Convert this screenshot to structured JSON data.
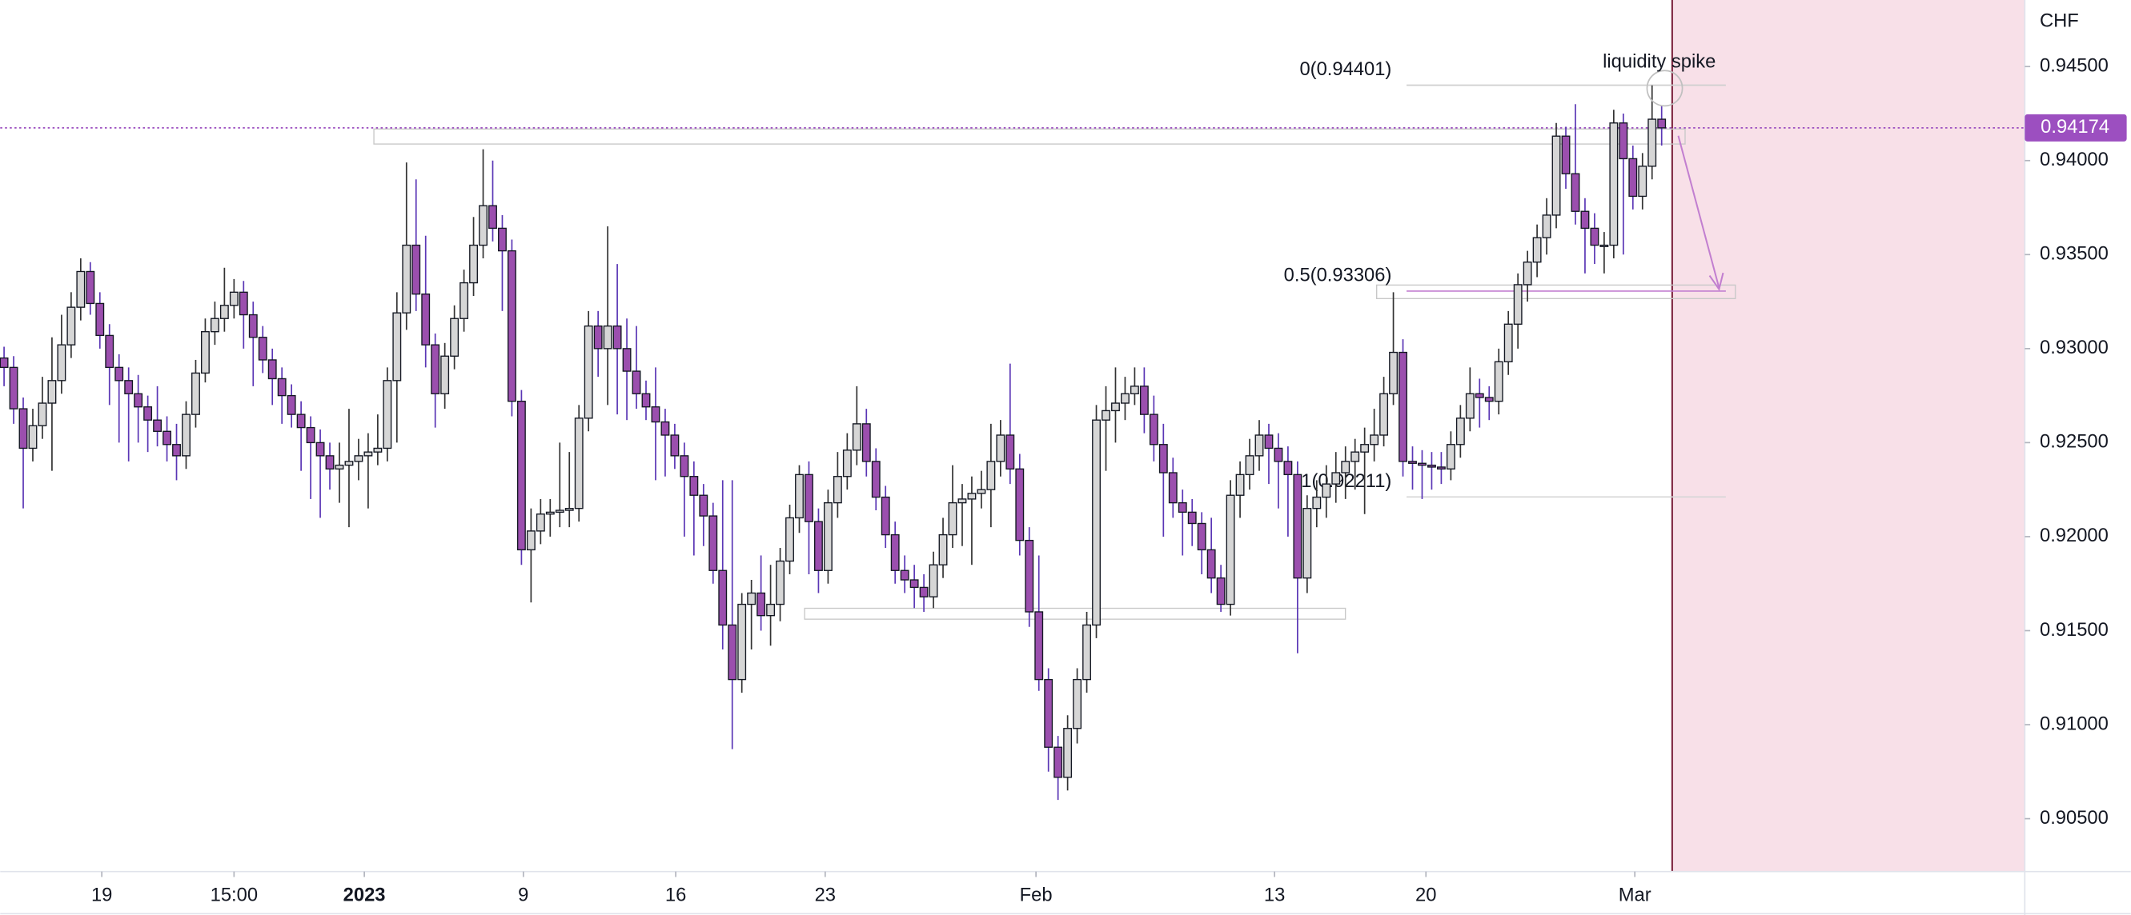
{
  "chart_data": {
    "type": "candlestick",
    "currency": "CHF",
    "annotation": "liquidity spike",
    "up_color": "#d6d6d6",
    "down_color": "#9b4fae",
    "up_wick": "#333333",
    "down_wick": "#5a36b5",
    "outline": "#131722",
    "open": [
      0.9295,
      0.929,
      0.9268,
      0.9247,
      0.9259,
      0.9271,
      0.9283,
      0.9302,
      0.9322,
      0.9341,
      0.9324,
      0.9307,
      0.929,
      0.9283,
      0.9276,
      0.9269,
      0.9262,
      0.9256,
      0.9249,
      0.9243,
      0.9265,
      0.9287,
      0.9309,
      0.9316,
      0.9323,
      0.933,
      0.9318,
      0.9306,
      0.9294,
      0.9284,
      0.9275,
      0.9265,
      0.9258,
      0.925,
      0.9243,
      0.9236,
      0.9238,
      0.924,
      0.9243,
      0.9245,
      0.9247,
      0.9283,
      0.9319,
      0.9355,
      0.9329,
      0.9302,
      0.9276,
      0.9296,
      0.9316,
      0.9335,
      0.9355,
      0.9376,
      0.9364,
      0.9352,
      0.9272,
      0.9193,
      0.9203,
      0.9212,
      0.9213,
      0.9214,
      0.9215,
      0.9263,
      0.9312,
      0.93,
      0.9312,
      0.93,
      0.9288,
      0.9276,
      0.9269,
      0.9261,
      0.9254,
      0.9243,
      0.9232,
      0.9222,
      0.9211,
      0.9182,
      0.9153,
      0.9124,
      0.9164,
      0.917,
      0.9158,
      0.9164,
      0.9187,
      0.921,
      0.9233,
      0.9208,
      0.9182,
      0.9218,
      0.9232,
      0.9246,
      0.926,
      0.924,
      0.9221,
      0.9201,
      0.9182,
      0.9177,
      0.9173,
      0.9168,
      0.9185,
      0.9201,
      0.9218,
      0.922,
      0.9223,
      0.9225,
      0.924,
      0.9254,
      0.9236,
      0.9198,
      0.916,
      0.9124,
      0.9088,
      0.9072,
      0.9098,
      0.9124,
      0.9153,
      0.9262,
      0.9267,
      0.9271,
      0.9276,
      0.928,
      0.9265,
      0.9249,
      0.9234,
      0.9218,
      0.9213,
      0.9207,
      0.9193,
      0.9178,
      0.9164,
      0.9222,
      0.9233,
      0.9243,
      0.9254,
      0.9247,
      0.924,
      0.9233,
      0.9178,
      0.9215,
      0.9221,
      0.9228,
      0.9234,
      0.924,
      0.9245,
      0.9249,
      0.9254,
      0.9276,
      0.9298,
      0.924,
      0.9239,
      0.9238,
      0.9237,
      0.9236,
      0.9249,
      0.9263,
      0.9276,
      0.9274,
      0.9272,
      0.9293,
      0.9313,
      0.9334,
      0.9346,
      0.9359,
      0.9371,
      0.9413,
      0.9393,
      0.9373,
      0.9364,
      0.9355,
      0.9355,
      0.942,
      0.9401,
      0.9381,
      0.9397,
      0.9422
    ],
    "high": [
      0.9301,
      0.9296,
      0.9274,
      0.9268,
      0.9285,
      0.9306,
      0.9318,
      0.933,
      0.9348,
      0.9346,
      0.933,
      0.9313,
      0.9297,
      0.929,
      0.9286,
      0.9275,
      0.928,
      0.9264,
      0.926,
      0.9272,
      0.9294,
      0.9316,
      0.9325,
      0.9343,
      0.9337,
      0.9336,
      0.9325,
      0.9312,
      0.93,
      0.929,
      0.9281,
      0.9272,
      0.9264,
      0.9257,
      0.925,
      0.925,
      0.9268,
      0.9252,
      0.9255,
      0.9265,
      0.929,
      0.933,
      0.9399,
      0.939,
      0.936,
      0.9308,
      0.9303,
      0.9323,
      0.9342,
      0.937,
      0.9406,
      0.94,
      0.9371,
      0.9358,
      0.9278,
      0.9215,
      0.922,
      0.922,
      0.925,
      0.9245,
      0.927,
      0.932,
      0.932,
      0.9365,
      0.9345,
      0.9316,
      0.9312,
      0.9283,
      0.929,
      0.9268,
      0.926,
      0.925,
      0.924,
      0.9228,
      0.9218,
      0.923,
      0.923,
      0.917,
      0.9177,
      0.919,
      0.9185,
      0.9194,
      0.9217,
      0.9238,
      0.924,
      0.9215,
      0.9225,
      0.9245,
      0.9255,
      0.928,
      0.9268,
      0.9247,
      0.9227,
      0.9208,
      0.919,
      0.9185,
      0.918,
      0.9192,
      0.921,
      0.9238,
      0.9228,
      0.9232,
      0.9235,
      0.926,
      0.9262,
      0.9292,
      0.9244,
      0.9205,
      0.919,
      0.913,
      0.9094,
      0.9105,
      0.913,
      0.916,
      0.927,
      0.928,
      0.929,
      0.9285,
      0.929,
      0.929,
      0.9275,
      0.926,
      0.9242,
      0.9225,
      0.922,
      0.9213,
      0.921,
      0.9185,
      0.923,
      0.924,
      0.9252,
      0.9262,
      0.926,
      0.9255,
      0.9248,
      0.924,
      0.9222,
      0.923,
      0.9238,
      0.9245,
      0.9248,
      0.9252,
      0.9258,
      0.9268,
      0.9285,
      0.933,
      0.9305,
      0.9248,
      0.9246,
      0.9245,
      0.9245,
      0.9256,
      0.927,
      0.929,
      0.9284,
      0.928,
      0.93,
      0.932,
      0.934,
      0.9352,
      0.9366,
      0.938,
      0.942,
      0.9418,
      0.943,
      0.938,
      0.9372,
      0.9362,
      0.9427,
      0.9425,
      0.9408,
      0.9404,
      0.944,
      0.9429
    ],
    "low": [
      0.928,
      0.926,
      0.9215,
      0.924,
      0.9252,
      0.9235,
      0.9276,
      0.9295,
      0.9315,
      0.9318,
      0.93,
      0.927,
      0.925,
      0.924,
      0.925,
      0.9245,
      0.9248,
      0.924,
      0.923,
      0.9236,
      0.9258,
      0.9282,
      0.9302,
      0.9309,
      0.9316,
      0.93,
      0.928,
      0.9287,
      0.927,
      0.926,
      0.9258,
      0.9235,
      0.922,
      0.921,
      0.9225,
      0.9218,
      0.9205,
      0.923,
      0.9215,
      0.9238,
      0.924,
      0.925,
      0.931,
      0.932,
      0.929,
      0.9258,
      0.9268,
      0.9289,
      0.9309,
      0.9328,
      0.9348,
      0.9357,
      0.932,
      0.9264,
      0.9185,
      0.9165,
      0.9196,
      0.92,
      0.9205,
      0.9205,
      0.9208,
      0.9256,
      0.9285,
      0.927,
      0.9265,
      0.9262,
      0.9268,
      0.9262,
      0.923,
      0.9232,
      0.9236,
      0.92,
      0.919,
      0.9195,
      0.9175,
      0.914,
      0.9087,
      0.9117,
      0.914,
      0.915,
      0.9142,
      0.9155,
      0.918,
      0.9202,
      0.918,
      0.917,
      0.9175,
      0.921,
      0.9225,
      0.9238,
      0.9232,
      0.9214,
      0.9194,
      0.9175,
      0.917,
      0.9162,
      0.916,
      0.9162,
      0.9178,
      0.9194,
      0.9195,
      0.9185,
      0.9215,
      0.9205,
      0.9232,
      0.9228,
      0.919,
      0.9152,
      0.9118,
      0.9075,
      0.906,
      0.9065,
      0.909,
      0.9117,
      0.9146,
      0.9235,
      0.925,
      0.9262,
      0.927,
      0.9255,
      0.924,
      0.92,
      0.921,
      0.919,
      0.9195,
      0.918,
      0.917,
      0.916,
      0.9158,
      0.921,
      0.9225,
      0.9235,
      0.9228,
      0.9215,
      0.92,
      0.9138,
      0.917,
      0.9205,
      0.921,
      0.9218,
      0.922,
      0.9225,
      0.9212,
      0.924,
      0.9248,
      0.927,
      0.9232,
      0.9225,
      0.922,
      0.9225,
      0.9228,
      0.923,
      0.9242,
      0.9256,
      0.9258,
      0.9262,
      0.9265,
      0.9286,
      0.93,
      0.9325,
      0.9338,
      0.935,
      0.9364,
      0.9385,
      0.9366,
      0.934,
      0.9345,
      0.934,
      0.9348,
      0.935,
      0.9374,
      0.9374,
      0.939,
      0.9408
    ],
    "close": [
      0.929,
      0.9268,
      0.9247,
      0.9259,
      0.9271,
      0.9283,
      0.9302,
      0.9322,
      0.9341,
      0.9324,
      0.9307,
      0.929,
      0.9283,
      0.9276,
      0.9269,
      0.9262,
      0.9256,
      0.9249,
      0.9243,
      0.9265,
      0.9287,
      0.9309,
      0.9316,
      0.9323,
      0.933,
      0.9318,
      0.9306,
      0.9294,
      0.9284,
      0.9275,
      0.9265,
      0.9258,
      0.925,
      0.9243,
      0.9236,
      0.9238,
      0.924,
      0.9243,
      0.9245,
      0.9247,
      0.9283,
      0.9319,
      0.9355,
      0.9329,
      0.9302,
      0.9276,
      0.9296,
      0.9316,
      0.9335,
      0.9355,
      0.9376,
      0.9364,
      0.9352,
      0.9272,
      0.9193,
      0.9203,
      0.9212,
      0.9213,
      0.9214,
      0.9215,
      0.9263,
      0.9312,
      0.93,
      0.9312,
      0.93,
      0.9288,
      0.9276,
      0.9269,
      0.9261,
      0.9254,
      0.9243,
      0.9232,
      0.9222,
      0.9211,
      0.9182,
      0.9153,
      0.9124,
      0.9164,
      0.917,
      0.9158,
      0.9164,
      0.9187,
      0.921,
      0.9233,
      0.9208,
      0.9182,
      0.9218,
      0.9232,
      0.9246,
      0.926,
      0.924,
      0.9221,
      0.9201,
      0.9182,
      0.9177,
      0.9173,
      0.9168,
      0.9185,
      0.9201,
      0.9218,
      0.922,
      0.9223,
      0.9225,
      0.924,
      0.9254,
      0.9236,
      0.9198,
      0.916,
      0.9124,
      0.9088,
      0.9072,
      0.9098,
      0.9124,
      0.9153,
      0.9262,
      0.9267,
      0.9271,
      0.9276,
      0.928,
      0.9265,
      0.9249,
      0.9234,
      0.9218,
      0.9213,
      0.9207,
      0.9193,
      0.9178,
      0.9164,
      0.9222,
      0.9233,
      0.9243,
      0.9254,
      0.9247,
      0.924,
      0.9233,
      0.9178,
      0.9215,
      0.9221,
      0.9228,
      0.9234,
      0.924,
      0.9245,
      0.9249,
      0.9254,
      0.9276,
      0.9298,
      0.924,
      0.9239,
      0.9238,
      0.9237,
      0.9236,
      0.9249,
      0.9263,
      0.9276,
      0.9274,
      0.9272,
      0.9293,
      0.9313,
      0.9334,
      0.9346,
      0.9359,
      0.9371,
      0.9413,
      0.9393,
      0.9373,
      0.9364,
      0.9355,
      0.9355,
      0.942,
      0.9401,
      0.9381,
      0.9397,
      0.9422,
      0.94174
    ],
    "xlim": [
      -0.4,
      210.9
    ],
    "ylim": [
      0.90226,
      0.94854
    ],
    "xticks": [
      {
        "value": 10.2,
        "label": "19"
      },
      {
        "value": 24.0,
        "label": "15:00"
      },
      {
        "value": 37.6,
        "label": "2023"
      },
      {
        "value": 54.2,
        "label": "9"
      },
      {
        "value": 70.1,
        "label": "16"
      },
      {
        "value": 85.7,
        "label": "23"
      },
      {
        "value": 107.7,
        "label": "Feb"
      },
      {
        "value": 132.6,
        "label": "13"
      },
      {
        "value": 148.4,
        "label": "20"
      },
      {
        "value": 170.2,
        "label": "Mar"
      }
    ],
    "yticks": [
      {
        "value": 0.905,
        "label": "0.90500"
      },
      {
        "value": 0.91,
        "label": "0.91000"
      },
      {
        "value": 0.915,
        "label": "0.91500"
      },
      {
        "value": 0.92,
        "label": "0.92000"
      },
      {
        "value": 0.925,
        "label": "0.92500"
      },
      {
        "value": 0.93,
        "label": "0.93000"
      },
      {
        "value": 0.935,
        "label": "0.93500"
      },
      {
        "value": 0.94,
        "label": "0.94000"
      },
      {
        "value": 0.945,
        "label": "0.94500"
      }
    ],
    "last_price": {
      "value": 0.94174,
      "label": "0.94174",
      "color": "#9c4fc0"
    },
    "fib_levels": [
      {
        "value": 0.94401,
        "label": "0(0.94401)",
        "color": "#cfcfcf"
      },
      {
        "value": 0.93306,
        "label": "0.5(0.93306)",
        "color": "#c27fd0"
      },
      {
        "value": 0.92211,
        "label": "1(0.92211)",
        "color": "#d6d6d6"
      }
    ],
    "zones": [
      {
        "top": 0.94168,
        "bottom": 0.94088
      },
      {
        "top": 0.91619,
        "bottom": 0.91561
      },
      {
        "top": 0.93338,
        "bottom": 0.93266
      }
    ]
  }
}
